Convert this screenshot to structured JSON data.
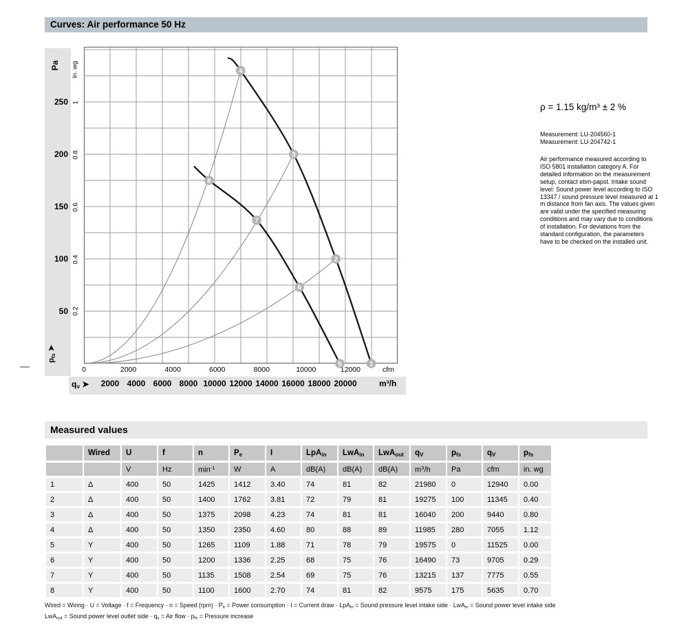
{
  "colors": {
    "title_bar": "#b9c4cd",
    "axis_band": "#e3e3e3",
    "section_bar": "#e8e8e8",
    "table_header_bg": "#c7c7c7",
    "table_row_bg": "#ececec",
    "grid": "#9b9b9b",
    "curve": "#161616",
    "system_curve": "#8c8c8c",
    "marker": "#b3b3b3"
  },
  "header": {
    "title": "Curves: Air performance 50 Hz"
  },
  "chart_labels": {
    "pa_unit": "Pa",
    "inwg_unit": "in. wg",
    "pfs_axis": "p_{fs} ➤",
    "qv_axis": "q_{v} ➤",
    "cfm_unit": "cfm",
    "m3h_unit": "m³/h"
  },
  "chart_data": {
    "type": "line",
    "title": "Curves: Air performance 50 Hz",
    "xlabel": "qv — air flow (m³/h, secondary scale cfm)",
    "ylabel": "pfs — pressure increase (Pa, secondary scale in. wg)",
    "x_range_m3h": [
      0,
      24000
    ],
    "y_range_pa": [
      0,
      302
    ],
    "grid": {
      "x_step_m3h": 2000,
      "y_step_pa": 25,
      "shown": true
    },
    "series": [
      {
        "name": "fan-curve-delta-wiring",
        "style": "thick",
        "points_m3h_pa": [
          [
            11050,
            292
          ],
          [
            11985,
            280
          ],
          [
            16040,
            200
          ],
          [
            19275,
            100
          ],
          [
            21980,
            0
          ]
        ]
      },
      {
        "name": "fan-curve-y-wiring",
        "style": "thick",
        "points_m3h_pa": [
          [
            8450,
            188
          ],
          [
            9575,
            175
          ],
          [
            13215,
            137
          ],
          [
            16490,
            73
          ],
          [
            19575,
            0
          ]
        ]
      },
      {
        "name": "system-resistance-curve-1",
        "style": "parabola",
        "end_m3h_pa": [
          11985,
          280
        ]
      },
      {
        "name": "system-resistance-curve-2",
        "style": "parabola",
        "end_m3h_pa": [
          16040,
          200
        ]
      },
      {
        "name": "system-resistance-curve-3",
        "style": "parabola",
        "end_m3h_pa": [
          19275,
          100
        ]
      }
    ],
    "markers": [
      {
        "label": "1",
        "m3h": 21980,
        "pa": 0
      },
      {
        "label": "2",
        "m3h": 19275,
        "pa": 100
      },
      {
        "label": "3",
        "m3h": 16040,
        "pa": 200
      },
      {
        "label": "4",
        "m3h": 11985,
        "pa": 280
      },
      {
        "label": "5",
        "m3h": 19575,
        "pa": 0
      },
      {
        "label": "6",
        "m3h": 16490,
        "pa": 73
      },
      {
        "label": "7",
        "m3h": 13215,
        "pa": 137
      },
      {
        "label": "8",
        "m3h": 9575,
        "pa": 175
      }
    ],
    "axis_ticks": {
      "pa": [
        250,
        200,
        150,
        100,
        50
      ],
      "inwg": [
        "1",
        "0.8",
        "0.6",
        "0.4",
        "0.2"
      ],
      "cfm": [
        0,
        2000,
        4000,
        6000,
        8000,
        10000,
        12000
      ],
      "m3h": [
        2000,
        4000,
        6000,
        8000,
        10000,
        12000,
        14000,
        16000,
        18000,
        20000
      ]
    },
    "legend_position": "none"
  },
  "side_text": {
    "density": "ρ = 1.15 kg/m³ ± 2 %",
    "measurement_1": "Measurement: LU-204560-1",
    "measurement_2": "Measurement: LU-204742-1",
    "note": "Air performance measured according to ISO 5801 installation category A. For detailed information on the measurement setup, contact ebm-papst. Intake sound level: Sound power level according to ISO 13347 / sound pressure level measured at 1 m distance from fan axis. The values given are valid under the specified measuring conditions and may vary due to conditions of installation. For deviations from the standard configuration, the parameters have to be checked on the installed unit."
  },
  "table": {
    "section_title": "Measured values",
    "headers": [
      "",
      "Wired",
      "U",
      "f",
      "n",
      "P_{e}",
      "I",
      "LpA_{in}",
      "LwA_{in}",
      "LwA_{out}",
      "q_{V}",
      "p_{fs}",
      "q_{V}",
      "p_{fs}"
    ],
    "units": [
      "",
      "",
      "V",
      "Hz",
      "min^{-1}",
      "W",
      "A",
      "dB(A)",
      "dB(A)",
      "dB(A)",
      "m^{3}/h",
      "Pa",
      "cfm",
      "in. wg"
    ],
    "rows": [
      [
        "1",
        "Δ",
        "400",
        "50",
        "1425",
        "1412",
        "3.40",
        "74",
        "81",
        "82",
        "21980",
        "0",
        "12940",
        "0.00"
      ],
      [
        "2",
        "Δ",
        "400",
        "50",
        "1400",
        "1762",
        "3.81",
        "72",
        "79",
        "81",
        "19275",
        "100",
        "11345",
        "0.40"
      ],
      [
        "3",
        "Δ",
        "400",
        "50",
        "1375",
        "2098",
        "4.23",
        "74",
        "81",
        "81",
        "16040",
        "200",
        "9440",
        "0.80"
      ],
      [
        "4",
        "Δ",
        "400",
        "50",
        "1350",
        "2350",
        "4.60",
        "80",
        "88",
        "89",
        "11985",
        "280",
        "7055",
        "1.12"
      ],
      [
        "5",
        "Y",
        "400",
        "50",
        "1265",
        "1109",
        "1.88",
        "71",
        "78",
        "79",
        "19575",
        "0",
        "11525",
        "0.00"
      ],
      [
        "6",
        "Y",
        "400",
        "50",
        "1200",
        "1336",
        "2.25",
        "68",
        "75",
        "76",
        "16490",
        "73",
        "9705",
        "0.29"
      ],
      [
        "7",
        "Y",
        "400",
        "50",
        "1135",
        "1508",
        "2.54",
        "69",
        "75",
        "76",
        "13215",
        "137",
        "7775",
        "0.55"
      ],
      [
        "8",
        "Y",
        "400",
        "50",
        "1100",
        "1600",
        "2.70",
        "74",
        "81",
        "82",
        "9575",
        "175",
        "5635",
        "0.70"
      ]
    ]
  },
  "footnote": {
    "line1": "Wired = Wiring · U = Voltage · f = Frequency · n = Speed (rpm) · P_{e} = Power consumption · I = Current draw · LpA_{in} = Sound pressure level intake side · LwA_{in} = Sound power level intake side",
    "line2": "LwA_{out} = Sound power level outlet side · q_{v} = Air flow · p_{fs} = Pressure increase"
  }
}
